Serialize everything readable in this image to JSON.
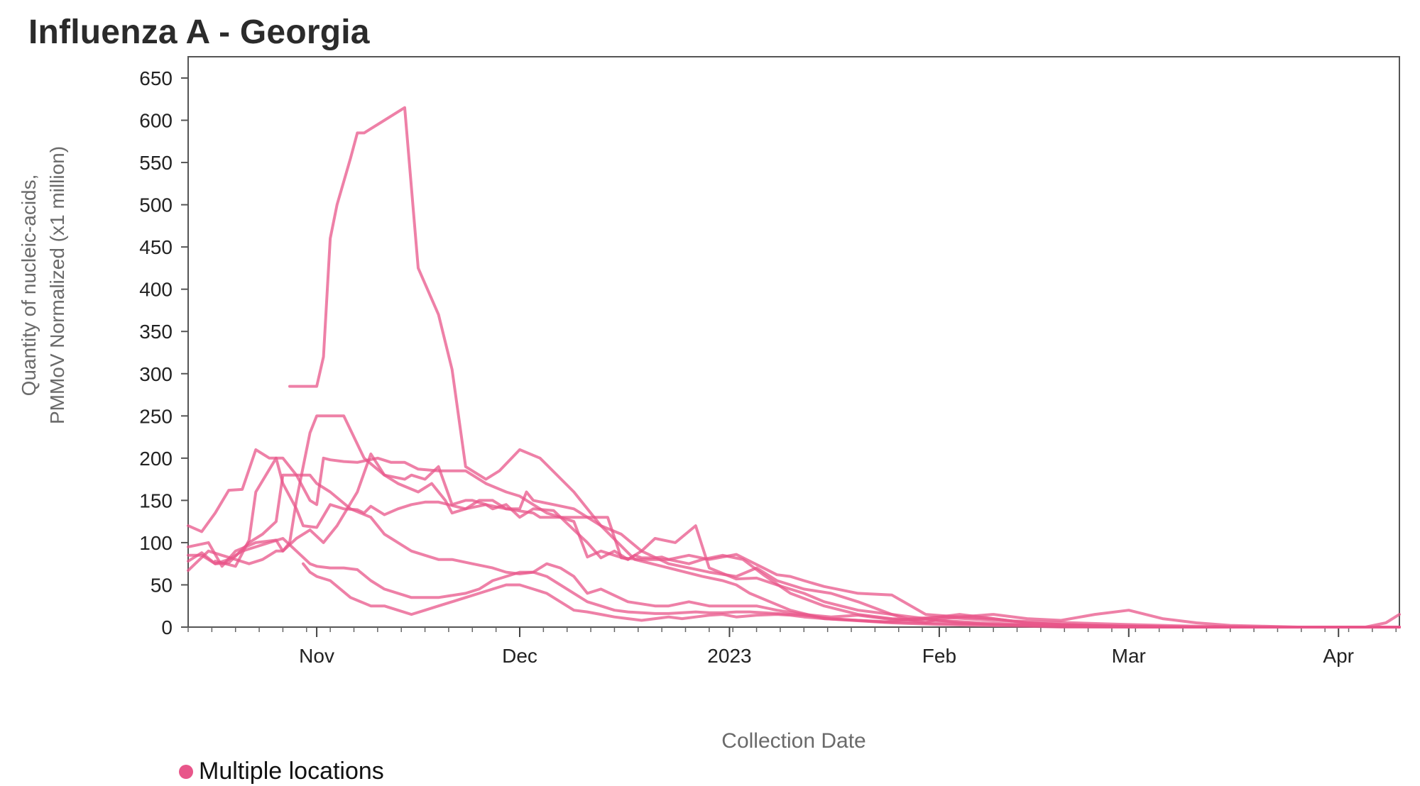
{
  "title": "Influenza A - Georgia",
  "legend": {
    "label": "Multiple locations",
    "color": "#e8568a"
  },
  "chart_data": {
    "type": "line",
    "title": "Influenza A - Georgia",
    "xlabel": "Collection Date",
    "ylabel_line1": "Quantity of nucleic-acids,",
    "ylabel_line2": "PMMoV Normalized (x1 million)",
    "ylim": [
      0,
      650
    ],
    "yticks": [
      0,
      50,
      100,
      150,
      200,
      250,
      300,
      350,
      400,
      450,
      500,
      550,
      600,
      650
    ],
    "xlim_days": [
      -19,
      160
    ],
    "x_unit": "days since Nov 1, 2022",
    "xticks": [
      {
        "label": "Nov",
        "day": 0
      },
      {
        "label": "Dec",
        "day": 30
      },
      {
        "label": "2023",
        "day": 61
      },
      {
        "label": "Feb",
        "day": 92
      },
      {
        "label": "Mar",
        "day": 120
      },
      {
        "label": "Apr",
        "day": 151
      }
    ],
    "series_color": "#e8568a",
    "series": [
      {
        "name": "Multiple locations",
        "x": [
          -4,
          -1,
          0,
          1,
          2,
          3,
          5,
          6,
          7,
          8,
          9,
          13,
          15,
          18,
          20,
          22,
          25,
          27,
          30,
          33,
          38,
          42,
          47,
          52,
          57,
          60,
          62,
          64,
          67,
          70,
          75,
          85,
          92,
          98,
          105,
          110,
          120,
          130,
          140,
          150,
          160
        ],
        "y": [
          285,
          285,
          285,
          320,
          460,
          500,
          555,
          585,
          585,
          590,
          595,
          615,
          425,
          370,
          305,
          190,
          175,
          185,
          210,
          200,
          160,
          120,
          80,
          70,
          60,
          55,
          50,
          40,
          30,
          20,
          10,
          5,
          3,
          2,
          1,
          0,
          0,
          0,
          0,
          0,
          0
        ]
      },
      {
        "name": "Multiple locations",
        "x": [
          -15,
          -12,
          -10,
          -9,
          -6,
          -5,
          -3,
          -2,
          0,
          2,
          4,
          6,
          7,
          8,
          10,
          12,
          14,
          16,
          18,
          22,
          25,
          28,
          32,
          33,
          35,
          38,
          41,
          43,
          45,
          48,
          52,
          55,
          57,
          60,
          63,
          66,
          70,
          75,
          80,
          85,
          92,
          98,
          105,
          110,
          120,
          130,
          140,
          150,
          160
        ],
        "y": [
          78,
          72,
          103,
          160,
          200,
          170,
          140,
          120,
          118,
          145,
          140,
          139,
          135,
          143,
          133,
          140,
          145,
          148,
          148,
          140,
          145,
          140,
          135,
          130,
          130,
          130,
          130,
          130,
          82,
          80,
          80,
          75,
          80,
          85,
          80,
          62,
          40,
          25,
          15,
          10,
          8,
          5,
          3,
          2,
          1,
          0,
          0,
          0,
          0
        ]
      },
      {
        "name": "Multiple locations",
        "x": [
          -19,
          -17,
          -15,
          -13,
          -11,
          -9,
          -7,
          -5,
          -3,
          -1,
          0,
          1,
          2,
          4,
          6,
          9,
          11,
          13,
          15,
          18,
          20,
          22,
          25,
          28,
          30,
          34,
          38,
          40,
          42,
          44,
          46,
          47,
          48,
          50,
          51,
          52,
          55,
          58,
          62,
          66,
          68,
          70,
          72,
          75,
          80,
          85,
          90,
          95,
          100,
          105,
          110,
          115,
          120,
          125,
          130,
          140,
          150,
          160
        ],
        "y": [
          120,
          113,
          135,
          162,
          163,
          210,
          200,
          200,
          180,
          150,
          145,
          200,
          198,
          196,
          195,
          200,
          195,
          195,
          187,
          185,
          185,
          185,
          170,
          160,
          155,
          135,
          125,
          83,
          90,
          85,
          80,
          85,
          82,
          82,
          83,
          80,
          85,
          80,
          86,
          70,
          62,
          60,
          55,
          48,
          40,
          38,
          15,
          12,
          10,
          5,
          3,
          2,
          1,
          0,
          0,
          0,
          0,
          0
        ]
      },
      {
        "name": "Multiple locations",
        "x": [
          -19,
          -16,
          -14,
          -12,
          -10,
          -8,
          -6,
          -5,
          -4,
          -3,
          -2,
          -1,
          0,
          1,
          2,
          4,
          7,
          10,
          13,
          14,
          16,
          18,
          20,
          22,
          23,
          25,
          26,
          28,
          30,
          32,
          35,
          38,
          40,
          42,
          44,
          46,
          48,
          50,
          53,
          56,
          58,
          62,
          65,
          68,
          72,
          75,
          80,
          85,
          90,
          95,
          100,
          110,
          120,
          130,
          140,
          150,
          160
        ],
        "y": [
          67,
          90,
          85,
          80,
          75,
          80,
          90,
          90,
          100,
          150,
          190,
          230,
          250,
          250,
          250,
          250,
          200,
          180,
          175,
          180,
          175,
          190,
          145,
          150,
          150,
          145,
          140,
          145,
          130,
          140,
          138,
          115,
          100,
          82,
          90,
          80,
          90,
          105,
          100,
          120,
          70,
          57,
          58,
          50,
          40,
          30,
          20,
          15,
          10,
          5,
          3,
          1,
          0,
          0,
          0,
          0,
          0
        ]
      },
      {
        "name": "Multiple locations",
        "x": [
          -19,
          -16,
          -14,
          -12,
          -9,
          -6,
          -5,
          -3,
          -1,
          1,
          3,
          6,
          8,
          10,
          12,
          15,
          17,
          19,
          20,
          22,
          24,
          26,
          28,
          30,
          31,
          32,
          35,
          38,
          40,
          42,
          45,
          48,
          52,
          55,
          58,
          62,
          65,
          68,
          72,
          76,
          80,
          85,
          88,
          90,
          92,
          95,
          100,
          105,
          110,
          120,
          130,
          140,
          150,
          160
        ],
        "y": [
          95,
          100,
          72,
          90,
          100,
          103,
          90,
          105,
          115,
          100,
          120,
          160,
          205,
          180,
          170,
          160,
          170,
          150,
          135,
          140,
          150,
          150,
          140,
          140,
          160,
          150,
          145,
          140,
          130,
          120,
          110,
          90,
          75,
          70,
          65,
          60,
          70,
          55,
          45,
          40,
          30,
          15,
          8,
          10,
          12,
          15,
          10,
          5,
          3,
          1,
          0,
          0,
          0,
          0
        ]
      },
      {
        "name": "Multiple locations",
        "x": [
          -19,
          -17,
          -15,
          -13,
          -10,
          -8,
          -6,
          -5,
          -3,
          -1,
          0,
          1,
          2,
          5,
          8,
          10,
          12,
          14,
          16,
          18,
          20,
          23,
          26,
          28,
          30,
          32,
          33,
          34,
          36,
          38,
          40,
          42,
          46,
          50,
          52,
          55,
          58,
          62,
          65,
          68,
          72,
          76,
          80,
          84,
          88,
          90,
          92,
          95,
          100,
          105,
          110,
          115,
          120,
          125,
          130,
          135,
          140,
          145,
          150,
          155,
          158,
          160
        ],
        "y": [
          78,
          88,
          75,
          76,
          100,
          110,
          125,
          180,
          180,
          180,
          170,
          165,
          160,
          140,
          130,
          110,
          100,
          90,
          85,
          80,
          80,
          75,
          70,
          65,
          63,
          65,
          70,
          75,
          70,
          60,
          40,
          45,
          30,
          25,
          25,
          30,
          25,
          25,
          25,
          20,
          15,
          12,
          14,
          10,
          8,
          5,
          10,
          12,
          15,
          10,
          8,
          15,
          20,
          10,
          5,
          2,
          1,
          0,
          0,
          0,
          5,
          15
        ]
      },
      {
        "name": "Multiple locations",
        "x": [
          -2,
          -1,
          0,
          2,
          5,
          8,
          10,
          12,
          14,
          16,
          18,
          20,
          22,
          24,
          26,
          28,
          30,
          32,
          34,
          36,
          38,
          40,
          42,
          44,
          46,
          48,
          50,
          52,
          54,
          56,
          58,
          60,
          62,
          65,
          68,
          70,
          72,
          75,
          80,
          85,
          90,
          95,
          100,
          110,
          120,
          130,
          140,
          150,
          160
        ],
        "y": [
          75,
          65,
          60,
          55,
          35,
          25,
          25,
          20,
          15,
          20,
          25,
          30,
          35,
          40,
          45,
          50,
          50,
          45,
          40,
          30,
          20,
          18,
          15,
          12,
          10,
          8,
          10,
          12,
          10,
          12,
          14,
          15,
          12,
          14,
          15,
          14,
          12,
          10,
          8,
          6,
          5,
          4,
          3,
          2,
          1,
          0,
          0,
          0,
          0
        ]
      },
      {
        "name": "Multiple locations",
        "x": [
          -19,
          -17,
          -15,
          -13,
          -11,
          -9,
          -7,
          -5,
          -3,
          -1,
          0,
          2,
          4,
          6,
          8,
          10,
          14,
          18,
          22,
          24,
          26,
          28,
          30,
          32,
          34,
          36,
          38,
          40,
          42,
          44,
          46,
          48,
          50,
          52,
          54,
          56,
          58,
          60,
          62,
          64,
          66,
          68,
          70,
          72,
          74,
          76,
          80,
          84,
          88,
          92,
          96,
          100,
          104,
          108,
          112,
          116,
          120,
          125,
          130,
          140,
          150,
          160
        ],
        "y": [
          85,
          85,
          75,
          80,
          90,
          95,
          100,
          105,
          90,
          75,
          72,
          70,
          70,
          68,
          55,
          45,
          35,
          35,
          40,
          45,
          55,
          60,
          65,
          65,
          60,
          50,
          40,
          30,
          25,
          20,
          18,
          17,
          16,
          16,
          17,
          18,
          17,
          17,
          18,
          18,
          17,
          16,
          15,
          14,
          12,
          10,
          8,
          6,
          10,
          12,
          10,
          8,
          7,
          6,
          5,
          4,
          3,
          2,
          1,
          0,
          0,
          0
        ]
      }
    ]
  }
}
